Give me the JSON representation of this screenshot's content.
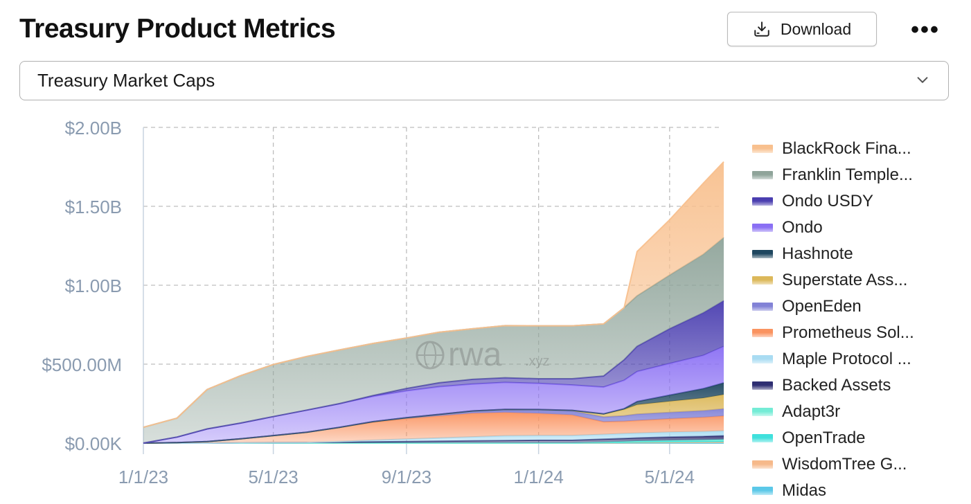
{
  "header": {
    "title": "Treasury Product Metrics",
    "download_label": "Download",
    "more_label": "•••"
  },
  "dropdown": {
    "selected": "Treasury Market Caps"
  },
  "watermark": {
    "text": "rwa",
    "suffix": ".xyz"
  },
  "chart_data": {
    "type": "area",
    "stacked": true,
    "title": "Treasury Market Caps",
    "xlabel": "",
    "ylabel": "",
    "x_ticks": [
      "1/1/23",
      "5/1/23",
      "9/1/23",
      "1/1/24",
      "5/1/24"
    ],
    "y_ticks": [
      "$0.00K",
      "$500.00M",
      "$1.00B",
      "$1.50B",
      "$2.00B"
    ],
    "ylim": [
      0,
      2000
    ],
    "y_units": "$M",
    "grid": true,
    "legend_position": "right",
    "x": [
      "2023-01-01",
      "2023-02-01",
      "2023-03-01",
      "2023-04-01",
      "2023-05-01",
      "2023-06-01",
      "2023-07-01",
      "2023-08-01",
      "2023-09-01",
      "2023-10-01",
      "2023-11-01",
      "2023-12-01",
      "2024-01-01",
      "2024-02-01",
      "2024-03-01",
      "2024-03-20",
      "2024-04-01",
      "2024-05-01",
      "2024-06-01",
      "2024-06-20"
    ],
    "series": [
      {
        "name": "Midas",
        "color": "#5bc8e8",
        "values": [
          0,
          0,
          0,
          0,
          0,
          0,
          0,
          0,
          0,
          0,
          0,
          0,
          0,
          0,
          0,
          0,
          0,
          0,
          0,
          0
        ]
      },
      {
        "name": "WisdomTree G...",
        "color": "#f6b98a",
        "values": [
          0,
          0,
          0,
          0,
          0,
          0,
          0,
          0,
          0,
          0,
          0,
          0,
          0,
          0,
          1,
          2,
          3,
          4,
          5,
          6
        ]
      },
      {
        "name": "OpenTrade",
        "color": "#3fe0dc",
        "values": [
          0,
          0,
          0,
          0,
          0,
          0,
          0,
          0,
          0,
          0,
          0,
          0,
          0,
          0,
          2,
          3,
          4,
          5,
          6,
          7
        ]
      },
      {
        "name": "Adapt3r",
        "color": "#74ecd6",
        "values": [
          0,
          0,
          0,
          0,
          0,
          0,
          0,
          0,
          0,
          0,
          0,
          0,
          0,
          0,
          3,
          5,
          6,
          8,
          9,
          10
        ]
      },
      {
        "name": "Backed Assets",
        "color": "#2e2e72",
        "values": [
          0,
          0,
          0,
          2,
          3,
          4,
          6,
          8,
          10,
          12,
          14,
          16,
          18,
          18,
          19,
          20,
          20,
          22,
          23,
          24
        ]
      },
      {
        "name": "Maple Protocol ...",
        "color": "#a9dcf2",
        "values": [
          0,
          0,
          0,
          0,
          0,
          0,
          4,
          10,
          15,
          20,
          25,
          30,
          30,
          30,
          30,
          30,
          30,
          30,
          30,
          30
        ]
      },
      {
        "name": "Prometheus Sol...",
        "color": "#fa9360",
        "values": [
          0,
          3,
          10,
          25,
          45,
          65,
          90,
          115,
          130,
          140,
          150,
          148,
          140,
          130,
          80,
          78,
          80,
          85,
          90,
          95
        ]
      },
      {
        "name": "OpenEden",
        "color": "#8282d6",
        "values": [
          0,
          0,
          0,
          0,
          0,
          0,
          0,
          3,
          6,
          10,
          15,
          20,
          25,
          25,
          30,
          35,
          40,
          40,
          42,
          45
        ]
      },
      {
        "name": "Superstate Ass...",
        "color": "#dcb85a",
        "values": [
          0,
          0,
          0,
          0,
          0,
          0,
          0,
          0,
          0,
          0,
          0,
          0,
          0,
          5,
          20,
          40,
          60,
          70,
          80,
          90
        ]
      },
      {
        "name": "Hashnote",
        "color": "#1f4760",
        "values": [
          0,
          0,
          0,
          0,
          0,
          0,
          0,
          0,
          0,
          0,
          0,
          0,
          0,
          0,
          0,
          5,
          20,
          40,
          60,
          75
        ]
      },
      {
        "name": "Ondo",
        "color": "#8a6ff4",
        "values": [
          0,
          35,
          80,
          100,
          120,
          140,
          150,
          160,
          170,
          175,
          170,
          170,
          165,
          160,
          170,
          180,
          190,
          200,
          210,
          230
        ]
      },
      {
        "name": "Ondo USDY",
        "color": "#4a3eb0",
        "values": [
          0,
          0,
          0,
          0,
          0,
          0,
          0,
          5,
          15,
          25,
          30,
          30,
          30,
          40,
          70,
          130,
          160,
          220,
          270,
          290
        ]
      },
      {
        "name": "Franklin Temple...",
        "color": "#8fa49a",
        "values": [
          100,
          120,
          250,
          300,
          330,
          340,
          340,
          330,
          320,
          320,
          320,
          330,
          335,
          335,
          330,
          330,
          320,
          340,
          370,
          400
        ]
      },
      {
        "name": "BlackRock Fina...",
        "color": "#f8c08e",
        "values": [
          0,
          0,
          0,
          0,
          0,
          0,
          0,
          0,
          0,
          0,
          0,
          0,
          0,
          0,
          0,
          0,
          280,
          350,
          450,
          480
        ]
      }
    ],
    "legend": [
      "BlackRock Fina...",
      "Franklin Temple...",
      "Ondo USDY",
      "Ondo",
      "Hashnote",
      "Superstate Ass...",
      "OpenEden",
      "Prometheus Sol...",
      "Maple Protocol ...",
      "Backed Assets",
      "Adapt3r",
      "OpenTrade",
      "WisdomTree G...",
      "Midas"
    ]
  }
}
